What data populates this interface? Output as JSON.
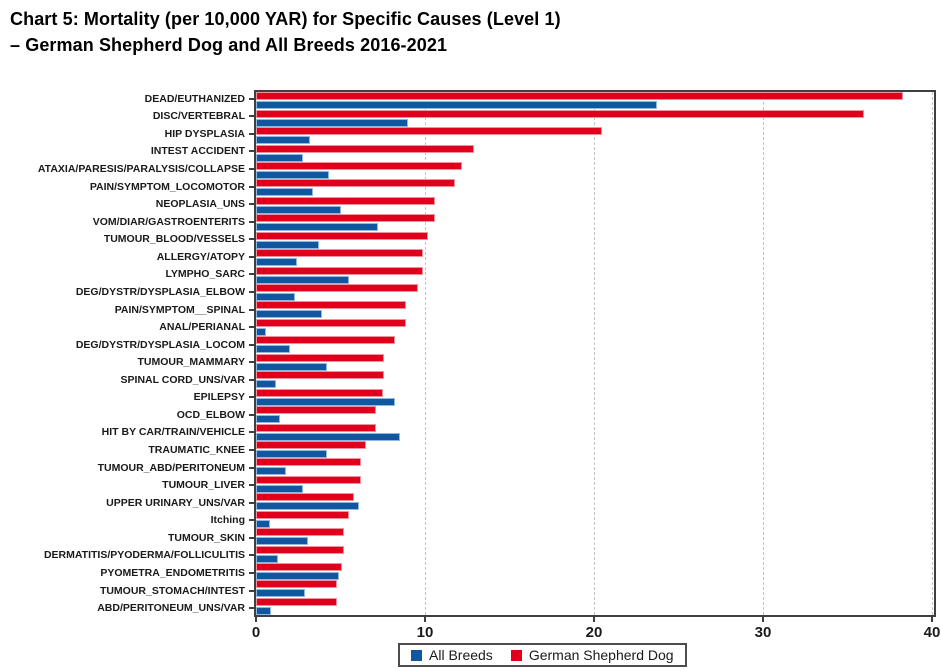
{
  "title": {
    "line1": "Chart 5: Mortality (per 10,000 YAR) for Specific Causes (Level 1)",
    "line2": "– German Shepherd Dog and All Breeds 2016-2021"
  },
  "colors": {
    "all_breeds_blue": "#10579F",
    "german_shepherd_red": "#E0001B",
    "frame": "#3F3F3F",
    "gridline": "#C4C4C4"
  },
  "chart_data": {
    "type": "bar",
    "orientation": "horizontal",
    "title": "Chart 5: Mortality (per 10,000 YAR) for Specific Causes (Level 1) – German Shepherd Dog and All Breeds 2016-2021",
    "xlabel": "",
    "ylabel": "",
    "xlim": [
      0,
      40
    ],
    "x_ticks": [
      0,
      10,
      20,
      30,
      40
    ],
    "grid": "vertical dashed gridlines at 10, 20, 30, 40",
    "legend_position": "bottom",
    "categories": [
      "DEAD/EUTHANIZED",
      "DISC/VERTEBRAL",
      "HIP DYSPLASIA",
      "INTEST ACCIDENT",
      "ATAXIA/PARESIS/PARALYSIS/COLLAPSE",
      "PAIN/SYMPTOM_LOCOMOTOR",
      "NEOPLASIA_UNS",
      "VOM/DIAR/GASTROENTERITS",
      "TUMOUR_BLOOD/VESSELS",
      "ALLERGY/ATOPY",
      "LYMPHO_SARC",
      "DEG/DYSTR/DYSPLASIA_ELBOW",
      "PAIN/SYMPTOM__SPINAL",
      "ANAL/PERIANAL",
      "DEG/DYSTR/DYSPLASIA_LOCOM",
      "TUMOUR_MAMMARY",
      "SPINAL CORD_UNS/VAR",
      "EPILEPSY",
      "OCD_ELBOW",
      "HIT BY CAR/TRAIN/VEHICLE",
      "TRAUMATIC_KNEE",
      "TUMOUR_ABD/PERITONEUM",
      "TUMOUR_LIVER",
      "UPPER URINARY_UNS/VAR",
      "Itching",
      "TUMOUR_SKIN",
      "DERMATITIS/PYODERMA/FOLLICULITIS",
      "PYOMETRA_ENDOMETRITIS",
      "TUMOUR_STOMACH/INTEST",
      "ABD/PERITONEUM_UNS/VAR"
    ],
    "series": [
      {
        "name": "All Breeds",
        "color": "#10579F",
        "values": [
          23.7,
          9.0,
          3.2,
          2.8,
          4.3,
          3.4,
          5.0,
          7.2,
          3.7,
          2.4,
          5.5,
          2.3,
          3.9,
          0.6,
          2.0,
          4.2,
          1.2,
          8.2,
          1.4,
          8.5,
          4.2,
          1.8,
          2.8,
          6.1,
          0.8,
          3.1,
          1.3,
          4.9,
          2.9,
          0.9
        ]
      },
      {
        "name": "German Shepherd Dog",
        "color": "#E0001B",
        "values": [
          38.3,
          36.0,
          20.5,
          12.9,
          12.2,
          11.8,
          10.6,
          10.6,
          10.2,
          9.9,
          9.9,
          9.6,
          8.9,
          8.9,
          8.2,
          7.6,
          7.6,
          7.5,
          7.1,
          7.1,
          6.5,
          6.2,
          6.2,
          5.8,
          5.5,
          5.2,
          5.2,
          5.1,
          4.8,
          4.8
        ]
      }
    ]
  }
}
